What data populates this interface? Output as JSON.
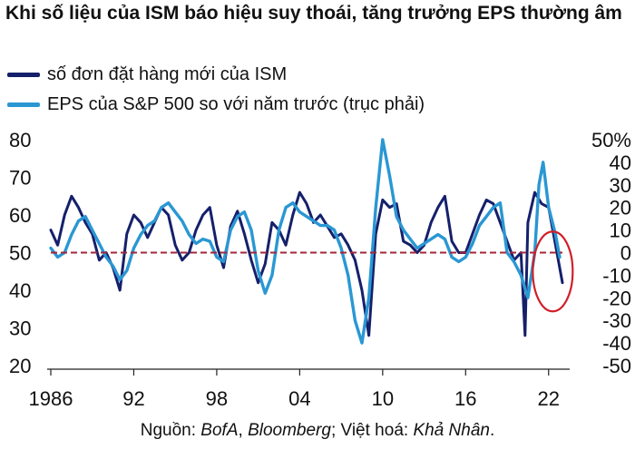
{
  "chart_data": {
    "type": "line",
    "title": "Khi số liệu của ISM báo hiệu suy thoái, tăng trưởng EPS thường âm",
    "legend_position": "top-left",
    "grid": false,
    "x_range": [
      1986,
      2023
    ],
    "x_ticks": [
      "1986",
      "92",
      "98",
      "04",
      "10",
      "16",
      "22"
    ],
    "y_left": {
      "range": [
        20,
        80
      ],
      "ticks": [
        "80",
        "70",
        "60",
        "50",
        "40",
        "30",
        "20"
      ]
    },
    "y_right": {
      "range": [
        -50,
        50
      ],
      "ticks": [
        "50%",
        "40",
        "30",
        "20",
        "10",
        "0",
        "-10",
        "-20",
        "-30",
        "-40",
        "-50"
      ]
    },
    "reference_line": {
      "axis": "left",
      "value": 50,
      "color": "#a3263a",
      "style": "dashed"
    },
    "highlight": {
      "shape": "ellipse",
      "around_year": 2022.3,
      "color": "#d0202a"
    },
    "series": [
      {
        "name": "số đơn đặt hàng mới của ISM",
        "axis": "left",
        "color": "#15206b",
        "x": [
          1986.0,
          1986.5,
          1987.0,
          1987.5,
          1988.0,
          1988.5,
          1989.0,
          1989.5,
          1990.0,
          1990.5,
          1991.0,
          1991.5,
          1992.0,
          1992.5,
          1993.0,
          1993.5,
          1994.0,
          1994.5,
          1995.0,
          1995.5,
          1996.0,
          1996.5,
          1997.0,
          1997.5,
          1998.0,
          1998.5,
          1999.0,
          1999.5,
          2000.0,
          2000.5,
          2001.0,
          2001.5,
          2002.0,
          2002.5,
          2003.0,
          2003.5,
          2004.0,
          2004.5,
          2005.0,
          2005.5,
          2006.0,
          2006.5,
          2007.0,
          2007.5,
          2008.0,
          2008.5,
          2009.0,
          2009.5,
          2010.0,
          2010.5,
          2011.0,
          2011.5,
          2012.0,
          2012.5,
          2013.0,
          2013.5,
          2014.0,
          2014.5,
          2015.0,
          2015.5,
          2016.0,
          2016.5,
          2017.0,
          2017.5,
          2018.0,
          2018.5,
          2019.0,
          2019.5,
          2020.0,
          2020.3,
          2020.5,
          2021.0,
          2021.5,
          2022.0,
          2022.5,
          2023.0
        ],
        "values": [
          56,
          52,
          60,
          65,
          62,
          58,
          55,
          48,
          50,
          46,
          40,
          55,
          60,
          58,
          54,
          58,
          62,
          60,
          52,
          48,
          50,
          56,
          60,
          62,
          52,
          46,
          57,
          61,
          55,
          48,
          42,
          47,
          58,
          56,
          52,
          60,
          66,
          63,
          58,
          60,
          57,
          54,
          55,
          52,
          48,
          40,
          28,
          55,
          64,
          62,
          63,
          53,
          52,
          50,
          52,
          58,
          62,
          65,
          53,
          50,
          50,
          55,
          60,
          64,
          63,
          58,
          53,
          48,
          50,
          28,
          58,
          66,
          63,
          62,
          52,
          42
        ]
      },
      {
        "name": "EPS của S&P 500 so với năm trước (trục phải)",
        "axis": "right",
        "color": "#2a97d3",
        "x": [
          1986.0,
          1986.5,
          1987.0,
          1987.5,
          1988.0,
          1988.5,
          1989.0,
          1989.5,
          1990.0,
          1990.5,
          1991.0,
          1991.5,
          1992.0,
          1992.5,
          1993.0,
          1993.5,
          1994.0,
          1994.5,
          1995.0,
          1995.5,
          1996.0,
          1996.5,
          1997.0,
          1997.5,
          1998.0,
          1998.5,
          1999.0,
          1999.5,
          2000.0,
          2000.5,
          2001.0,
          2001.5,
          2002.0,
          2002.5,
          2003.0,
          2003.5,
          2004.0,
          2004.5,
          2005.0,
          2005.5,
          2006.0,
          2006.5,
          2007.0,
          2007.5,
          2008.0,
          2008.5,
          2009.0,
          2009.5,
          2010.0,
          2010.5,
          2011.0,
          2011.5,
          2012.0,
          2012.5,
          2013.0,
          2013.5,
          2014.0,
          2014.5,
          2015.0,
          2015.5,
          2016.0,
          2016.5,
          2017.0,
          2017.5,
          2018.0,
          2018.5,
          2019.0,
          2019.5,
          2020.0,
          2020.5,
          2021.0,
          2021.3,
          2021.6,
          2022.0,
          2022.5,
          2022.8
        ],
        "values": [
          2,
          -2,
          0,
          8,
          14,
          16,
          10,
          4,
          -2,
          -6,
          -12,
          -8,
          2,
          8,
          12,
          14,
          20,
          22,
          18,
          14,
          8,
          4,
          6,
          5,
          -2,
          -4,
          10,
          16,
          18,
          10,
          -8,
          -18,
          -10,
          10,
          20,
          22,
          18,
          16,
          14,
          12,
          12,
          10,
          2,
          -10,
          -30,
          -40,
          -20,
          20,
          50,
          34,
          16,
          10,
          6,
          2,
          4,
          6,
          8,
          6,
          -2,
          -4,
          -2,
          4,
          12,
          16,
          20,
          22,
          0,
          -4,
          -10,
          -20,
          0,
          30,
          40,
          20,
          8,
          -2
        ]
      }
    ],
    "source_label": "Nguồn: ",
    "source_italic_1": "BofA",
    "source_sep_1": ", ",
    "source_italic_2": "Bloomberg",
    "source_sep_2": "; Việt hoá: ",
    "source_italic_3": "Khả Nhân",
    "source_end": "."
  }
}
